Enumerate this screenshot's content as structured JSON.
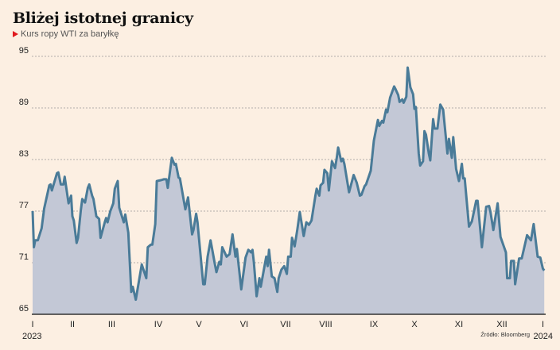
{
  "title": "Bliżej istotnej granicy",
  "subtitle": "Kurs ropy WTI za baryłkę",
  "source": "Źródło: Bloomberg",
  "colors": {
    "background": "#fcefe2",
    "line": "#4a7b98",
    "fill": "#c3c8d6",
    "marker": "#e0191e"
  },
  "chart_data": {
    "type": "area",
    "title": "Bliżej istotnej granicy",
    "subtitle": "Kurs ropy WTI za baryłkę",
    "xlabel": "",
    "ylabel": "",
    "ylim": [
      65,
      95
    ],
    "yticks": [
      "65",
      "71",
      "77",
      "83",
      "89",
      "95"
    ],
    "xticks": [
      "I",
      "II",
      "III",
      "IV",
      "V",
      "VI",
      "VII",
      "VIII",
      "IX",
      "X",
      "XI",
      "XII",
      "I"
    ],
    "year_labels": [
      "2023",
      "2024"
    ],
    "grid": "horizontal dashed",
    "legend": "none",
    "series": [
      {
        "points": [
          [
            "2023-01-01",
            77.0
          ],
          [
            "2023-01-02",
            72.8
          ],
          [
            "2023-01-03",
            73.6
          ],
          [
            "2023-01-05",
            73.6
          ],
          [
            "2023-01-08",
            75.0
          ],
          [
            "2023-01-10",
            77.3
          ],
          [
            "2023-01-14",
            80.0
          ],
          [
            "2023-01-15",
            80.1
          ],
          [
            "2023-01-16",
            79.4
          ],
          [
            "2023-01-20",
            81.4
          ],
          [
            "2023-01-21",
            81.5
          ],
          [
            "2023-01-23",
            80.1
          ],
          [
            "2023-01-25",
            80.1
          ],
          [
            "2023-01-26",
            81.0
          ],
          [
            "2023-01-29",
            77.9
          ],
          [
            "2023-01-31",
            78.8
          ],
          [
            "2023-02-01",
            76.4
          ],
          [
            "2023-02-02",
            75.9
          ],
          [
            "2023-02-04",
            73.3
          ],
          [
            "2023-02-05",
            73.9
          ],
          [
            "2023-02-07",
            77.1
          ],
          [
            "2023-02-08",
            78.4
          ],
          [
            "2023-02-10",
            78.0
          ],
          [
            "2023-02-12",
            79.7
          ],
          [
            "2023-02-13",
            80.1
          ],
          [
            "2023-02-15",
            78.8
          ],
          [
            "2023-02-16",
            78.4
          ],
          [
            "2023-02-18",
            76.4
          ],
          [
            "2023-02-20",
            76.1
          ],
          [
            "2023-02-21",
            73.9
          ],
          [
            "2023-02-24",
            75.7
          ],
          [
            "2023-02-25",
            76.2
          ],
          [
            "2023-02-26",
            75.7
          ],
          [
            "2023-02-28",
            77.0
          ],
          [
            "2023-03-02",
            77.9
          ],
          [
            "2023-03-03",
            79.6
          ],
          [
            "2023-03-05",
            80.5
          ],
          [
            "2023-03-06",
            77.4
          ],
          [
            "2023-03-09",
            75.7
          ],
          [
            "2023-03-10",
            76.6
          ],
          [
            "2023-03-12",
            74.5
          ],
          [
            "2023-03-14",
            67.6
          ],
          [
            "2023-03-15",
            68.2
          ],
          [
            "2023-03-17",
            66.7
          ],
          [
            "2023-03-21",
            70.8
          ],
          [
            "2023-03-24",
            69.2
          ],
          [
            "2023-03-25",
            72.8
          ],
          [
            "2023-03-27",
            73.1
          ],
          [
            "2023-03-28",
            73.1
          ],
          [
            "2023-03-30",
            75.5
          ],
          [
            "2023-03-31",
            80.5
          ],
          [
            "2023-04-03",
            80.6
          ],
          [
            "2023-04-05",
            80.7
          ],
          [
            "2023-04-07",
            80.7
          ],
          [
            "2023-04-08",
            79.7
          ],
          [
            "2023-04-11",
            83.2
          ],
          [
            "2023-04-13",
            82.4
          ],
          [
            "2023-04-14",
            82.5
          ],
          [
            "2023-04-16",
            80.9
          ],
          [
            "2023-04-17",
            80.8
          ],
          [
            "2023-04-21",
            77.2
          ],
          [
            "2023-04-23",
            78.6
          ],
          [
            "2023-04-26",
            74.3
          ],
          [
            "2023-04-27",
            74.8
          ],
          [
            "2023-04-29",
            76.7
          ],
          [
            "2023-04-30",
            75.7
          ],
          [
            "2023-05-04",
            68.5
          ],
          [
            "2023-05-05",
            68.5
          ],
          [
            "2023-05-07",
            71.7
          ],
          [
            "2023-05-09",
            73.6
          ],
          [
            "2023-05-12",
            70.8
          ],
          [
            "2023-05-13",
            69.9
          ],
          [
            "2023-05-15",
            71.1
          ],
          [
            "2023-05-16",
            70.8
          ],
          [
            "2023-05-17",
            72.8
          ],
          [
            "2023-05-20",
            71.7
          ],
          [
            "2023-05-22",
            72.0
          ],
          [
            "2023-05-24",
            74.3
          ],
          [
            "2023-05-26",
            71.7
          ],
          [
            "2023-05-27",
            72.6
          ],
          [
            "2023-05-30",
            67.9
          ],
          [
            "2023-06-02",
            71.6
          ],
          [
            "2023-06-04",
            72.5
          ],
          [
            "2023-06-06",
            72.2
          ],
          [
            "2023-06-07",
            72.5
          ],
          [
            "2023-06-08",
            71.1
          ],
          [
            "2023-06-10",
            67.1
          ],
          [
            "2023-06-12",
            69.2
          ],
          [
            "2023-06-13",
            68.2
          ],
          [
            "2023-06-17",
            71.7
          ],
          [
            "2023-06-18",
            70.6
          ],
          [
            "2023-06-19",
            72.5
          ],
          [
            "2023-06-21",
            69.4
          ],
          [
            "2023-06-23",
            69.2
          ],
          [
            "2023-06-25",
            67.6
          ],
          [
            "2023-06-26",
            69.2
          ],
          [
            "2023-06-28",
            70.2
          ],
          [
            "2023-06-30",
            70.6
          ],
          [
            "2023-07-02",
            69.7
          ],
          [
            "2023-07-03",
            71.7
          ],
          [
            "2023-07-05",
            71.7
          ],
          [
            "2023-07-06",
            73.9
          ],
          [
            "2023-07-08",
            72.9
          ],
          [
            "2023-07-10",
            74.8
          ],
          [
            "2023-07-12",
            76.9
          ],
          [
            "2023-07-15",
            74.1
          ],
          [
            "2023-07-17",
            75.7
          ],
          [
            "2023-07-19",
            75.4
          ],
          [
            "2023-07-21",
            75.9
          ],
          [
            "2023-07-24",
            78.8
          ],
          [
            "2023-07-25",
            79.6
          ],
          [
            "2023-07-27",
            78.8
          ],
          [
            "2023-07-28",
            80.0
          ],
          [
            "2023-07-30",
            80.3
          ],
          [
            "2023-07-31",
            81.8
          ],
          [
            "2023-08-02",
            81.4
          ],
          [
            "2023-08-03",
            79.4
          ],
          [
            "2023-08-05",
            82.8
          ],
          [
            "2023-08-07",
            82.0
          ],
          [
            "2023-08-08",
            83.1
          ],
          [
            "2023-08-09",
            84.4
          ],
          [
            "2023-08-11",
            82.8
          ],
          [
            "2023-08-12",
            83.1
          ],
          [
            "2023-08-13",
            82.5
          ],
          [
            "2023-08-16",
            79.2
          ],
          [
            "2023-08-19",
            81.2
          ],
          [
            "2023-08-21",
            80.3
          ],
          [
            "2023-08-23",
            78.8
          ],
          [
            "2023-08-24",
            78.9
          ],
          [
            "2023-08-26",
            79.9
          ],
          [
            "2023-08-27",
            80.1
          ],
          [
            "2023-08-30",
            81.7
          ],
          [
            "2023-09-01",
            85.2
          ],
          [
            "2023-09-04",
            87.6
          ],
          [
            "2023-09-05",
            86.9
          ],
          [
            "2023-09-07",
            87.5
          ],
          [
            "2023-09-08",
            87.3
          ],
          [
            "2023-09-10",
            88.8
          ],
          [
            "2023-09-11",
            88.5
          ],
          [
            "2023-09-13",
            90.2
          ],
          [
            "2023-09-16",
            91.5
          ],
          [
            "2023-09-17",
            91.2
          ],
          [
            "2023-09-19",
            90.5
          ],
          [
            "2023-09-20",
            89.7
          ],
          [
            "2023-09-22",
            90.0
          ],
          [
            "2023-09-23",
            89.6
          ],
          [
            "2023-09-25",
            90.3
          ],
          [
            "2023-09-26",
            93.7
          ],
          [
            "2023-09-28",
            91.4
          ],
          [
            "2023-09-30",
            90.6
          ],
          [
            "2023-10-01",
            88.9
          ],
          [
            "2023-10-02",
            89.1
          ],
          [
            "2023-10-04",
            83.7
          ],
          [
            "2023-10-05",
            82.3
          ],
          [
            "2023-10-07",
            82.8
          ],
          [
            "2023-10-08",
            86.3
          ],
          [
            "2023-10-09",
            85.9
          ],
          [
            "2023-10-11",
            83.7
          ],
          [
            "2023-10-12",
            82.9
          ],
          [
            "2023-10-14",
            87.7
          ],
          [
            "2023-10-15",
            86.6
          ],
          [
            "2023-10-17",
            86.6
          ],
          [
            "2023-10-19",
            89.4
          ],
          [
            "2023-10-21",
            88.8
          ],
          [
            "2023-10-23",
            85.4
          ],
          [
            "2023-10-24",
            83.7
          ],
          [
            "2023-10-25",
            85.4
          ],
          [
            "2023-10-27",
            83.2
          ],
          [
            "2023-10-28",
            85.6
          ],
          [
            "2023-10-30",
            81.9
          ],
          [
            "2023-11-01",
            80.5
          ],
          [
            "2023-11-03",
            82.5
          ],
          [
            "2023-11-04",
            80.8
          ],
          [
            "2023-11-05",
            80.8
          ],
          [
            "2023-11-08",
            75.2
          ],
          [
            "2023-11-10",
            75.8
          ],
          [
            "2023-11-13",
            78.2
          ],
          [
            "2023-11-14",
            78.2
          ],
          [
            "2023-11-17",
            72.8
          ],
          [
            "2023-11-20",
            77.5
          ],
          [
            "2023-11-22",
            77.6
          ],
          [
            "2023-11-23",
            76.9
          ],
          [
            "2023-11-25",
            74.8
          ],
          [
            "2023-11-28",
            77.9
          ],
          [
            "2023-11-30",
            74.0
          ],
          [
            "2023-12-04",
            72.2
          ],
          [
            "2023-12-05",
            69.2
          ],
          [
            "2023-12-07",
            69.2
          ],
          [
            "2023-12-08",
            71.2
          ],
          [
            "2023-12-10",
            71.2
          ],
          [
            "2023-12-11",
            68.5
          ],
          [
            "2023-12-14",
            71.5
          ],
          [
            "2023-12-16",
            71.5
          ],
          [
            "2023-12-20",
            74.2
          ],
          [
            "2023-12-23",
            73.6
          ],
          [
            "2023-12-25",
            75.5
          ],
          [
            "2023-12-28",
            71.7
          ],
          [
            "2023-12-30",
            71.6
          ],
          [
            "2024-01-01",
            70.3
          ],
          [
            "2024-01-02",
            70.1
          ]
        ]
      }
    ]
  }
}
